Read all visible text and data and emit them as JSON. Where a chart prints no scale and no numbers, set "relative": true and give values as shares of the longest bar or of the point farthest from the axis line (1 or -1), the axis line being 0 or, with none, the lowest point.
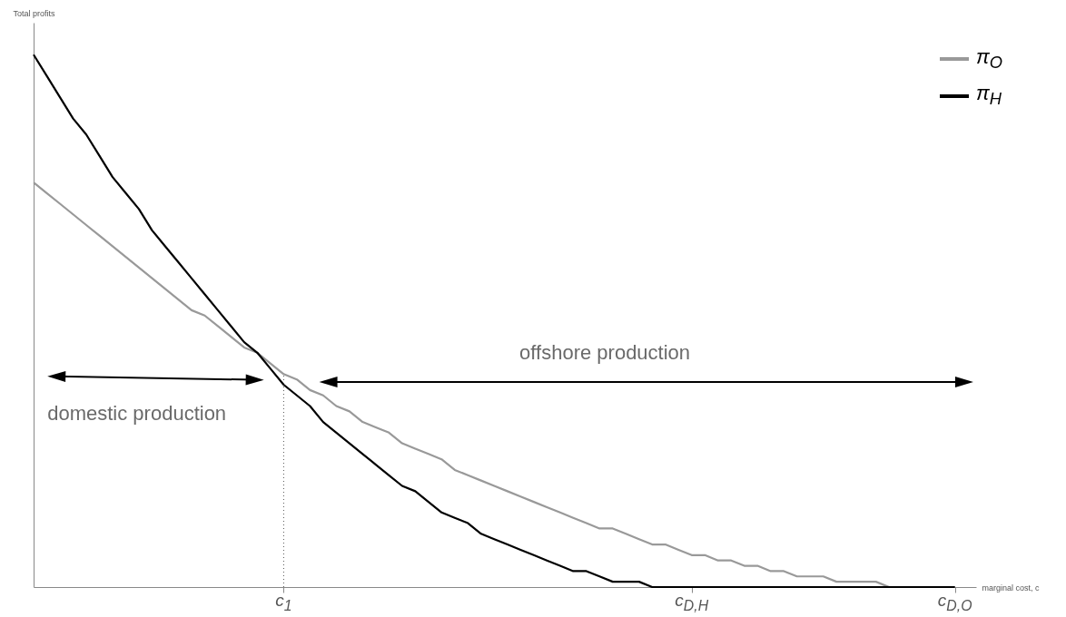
{
  "chart_data": {
    "type": "line",
    "relative": true,
    "xlabel": "marginal cost, c",
    "ylabel": "Total profits",
    "categories": [
      null,
      null,
      null,
      null,
      null,
      null,
      null,
      null,
      null,
      null,
      null,
      null,
      null,
      null,
      null,
      null,
      null,
      null,
      null,
      "c$_{1}$",
      null,
      null,
      null,
      null,
      null,
      null,
      null,
      null,
      null,
      null,
      null,
      null,
      null,
      null,
      null,
      null,
      null,
      null,
      null,
      null,
      null,
      null,
      null,
      null,
      null,
      null,
      null,
      null,
      null,
      null,
      "c$_{D,H}$",
      null,
      null,
      null,
      null,
      null,
      null,
      null,
      null,
      null,
      null,
      null,
      null,
      null,
      null,
      null,
      null,
      null,
      null,
      null,
      "c$_{D,O}$"
    ],
    "series": [
      {
        "name": "π$_{O}$",
        "color": "#999999",
        "values": [
          0.76,
          0.74,
          0.72,
          0.7,
          0.68,
          0.66,
          0.64,
          0.62,
          0.6,
          0.58,
          0.56,
          0.54,
          0.52,
          0.51,
          0.49,
          0.47,
          0.45,
          0.44,
          0.42,
          0.4,
          0.39,
          0.37,
          0.36,
          0.34,
          0.33,
          0.31,
          0.3,
          0.29,
          0.27,
          0.26,
          0.25,
          0.24,
          0.22,
          0.21,
          0.2,
          0.19,
          0.18,
          0.17,
          0.16,
          0.15,
          0.14,
          0.13,
          0.12,
          0.11,
          0.11,
          0.1,
          0.09,
          0.08,
          0.08,
          0.07,
          0.06,
          0.06,
          0.05,
          0.05,
          0.04,
          0.04,
          0.03,
          0.03,
          0.02,
          0.02,
          0.02,
          0.01,
          0.01,
          0.01,
          0.01,
          0,
          0,
          0,
          0,
          0,
          0
        ]
      },
      {
        "name": "π$_{H}$",
        "color": "#000000",
        "values": [
          1,
          0.96,
          0.92,
          0.88,
          0.85,
          0.81,
          0.77,
          0.74,
          0.71,
          0.67,
          0.64,
          0.61,
          0.58,
          0.55,
          0.52,
          0.49,
          0.46,
          0.44,
          0.41,
          0.38,
          0.36,
          0.34,
          0.31,
          0.29,
          0.27,
          0.25,
          0.23,
          0.21,
          0.19,
          0.18,
          0.16,
          0.14,
          0.13,
          0.12,
          0.1,
          0.09,
          0.08,
          0.07,
          0.06,
          0.05,
          0.04,
          0.03,
          0.03,
          0.02,
          0.01,
          0.01,
          0.01,
          0,
          0,
          0,
          0,
          0,
          0,
          0,
          0,
          0,
          0,
          0,
          0,
          0,
          0,
          0,
          0,
          0,
          0,
          0,
          0,
          0,
          0,
          0,
          0
        ]
      }
    ],
    "legend": "top right",
    "ref_lines": [
      {
        "axis": "x",
        "value": "c$_{1}$",
        "line_style": "dotted"
      }
    ],
    "annotations": [
      "domestic production",
      "offshore production"
    ]
  }
}
